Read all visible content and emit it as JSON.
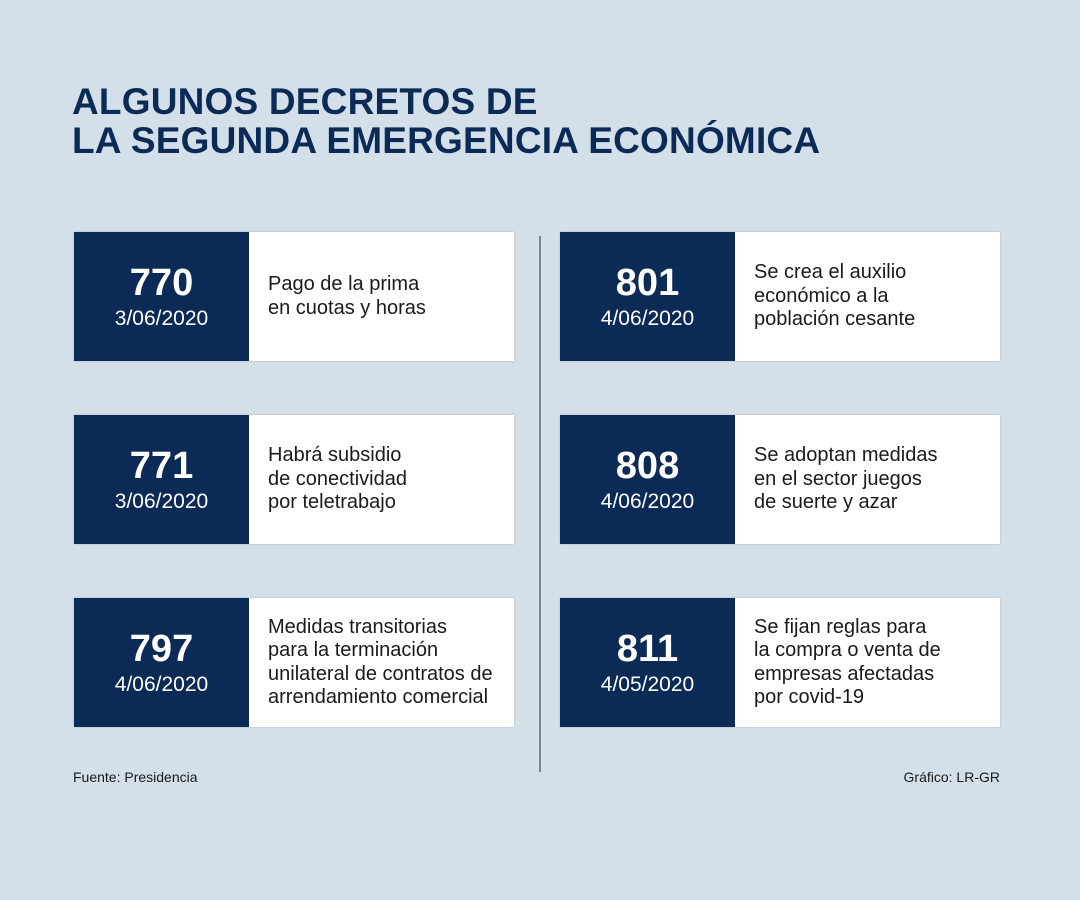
{
  "title": {
    "line1": "ALGUNOS DECRETOS DE",
    "line2": "LA SEGUNDA EMERGENCIA ECONÓMICA"
  },
  "decrees": [
    {
      "number": "770",
      "date": "3/06/2020",
      "description": "Pago de la prima\nen cuotas y horas"
    },
    {
      "number": "801",
      "date": "4/06/2020",
      "description": "Se crea el auxilio\neconómico a la\npoblación cesante"
    },
    {
      "number": "771",
      "date": "3/06/2020",
      "description": "Habrá subsidio\nde conectividad\npor teletrabajo"
    },
    {
      "number": "808",
      "date": "4/06/2020",
      "description": "Se adoptan medidas\nen el sector juegos\nde suerte y azar"
    },
    {
      "number": "797",
      "date": "4/06/2020",
      "description": "Medidas transitorias\npara la terminación\nunilateral de contratos de\narrendamiento comercial"
    },
    {
      "number": "811",
      "date": "4/05/2020",
      "description": "Se fijan reglas para\nla compra o venta de\nempresas afectadas\npor covid-19"
    }
  ],
  "footer": {
    "source": "Fuente: Presidencia",
    "credit": "Gráfico: LR-GR"
  },
  "colors": {
    "background": "#d3dfe9",
    "navy": "#0b2a55",
    "card": "#ffffff"
  }
}
